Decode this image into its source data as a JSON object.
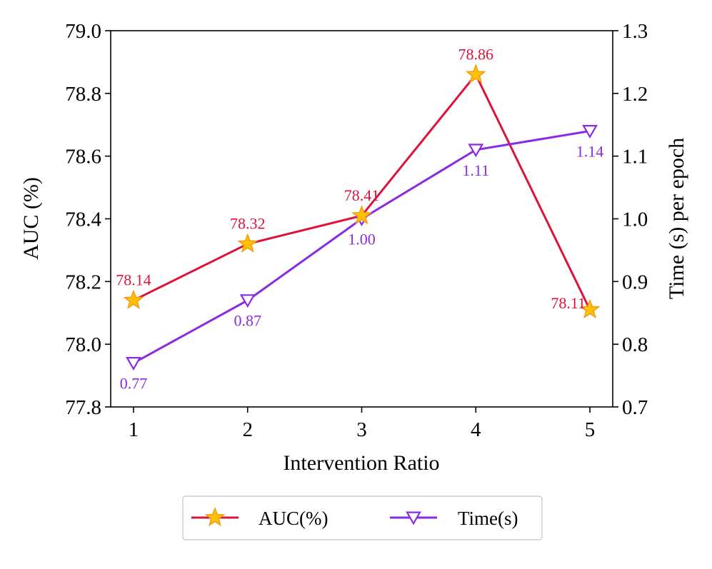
{
  "chart_data": {
    "type": "line",
    "title": "",
    "xlabel": "Intervention Ratio",
    "ylabel_left": "AUC (%)",
    "ylabel_right": "Time (s) per epoch",
    "x": [
      1,
      2,
      3,
      4,
      5
    ],
    "x_ticks": [
      "1",
      "2",
      "3",
      "4",
      "5"
    ],
    "xlim": [
      0.8,
      5.2
    ],
    "ylim_left": [
      77.8,
      79.0
    ],
    "ylim_right": [
      0.7,
      1.3
    ],
    "y_ticks_left": [
      "77.8",
      "78.0",
      "78.2",
      "78.4",
      "78.6",
      "78.8",
      "79.0"
    ],
    "y_ticks_right": [
      "0.7",
      "0.8",
      "0.9",
      "1.0",
      "1.1",
      "1.2",
      "1.3"
    ],
    "grid": false,
    "legend_position": "bottom-center",
    "series": [
      {
        "name": "AUC(%)",
        "axis": "left",
        "values": [
          78.14,
          78.32,
          78.41,
          78.86,
          78.11
        ],
        "labels": [
          "78.14",
          "78.32",
          "78.41",
          "78.86",
          "78.11"
        ],
        "color": "#dc143c",
        "marker": "star",
        "marker_color": "#ffc107",
        "marker_edge": "#f39c12"
      },
      {
        "name": "Time(s)",
        "axis": "right",
        "values": [
          0.77,
          0.87,
          1.0,
          1.11,
          1.14
        ],
        "labels": [
          "0.77",
          "0.87",
          "1.00",
          "1.11",
          "1.14"
        ],
        "color": "#8a2be2",
        "marker": "triangle-down-open",
        "marker_color": "#ffffff",
        "marker_edge": "#8a2be2"
      }
    ]
  }
}
